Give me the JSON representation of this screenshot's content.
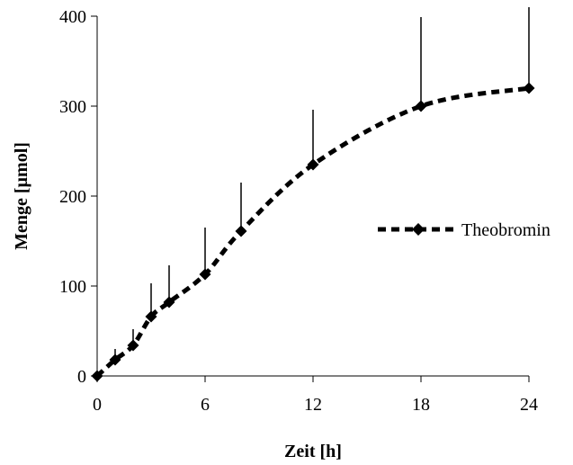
{
  "chart_data": {
    "type": "line",
    "xlabel": "Zeit [h]",
    "ylabel": "Menge [µmol]",
    "xlim": [
      0,
      24
    ],
    "ylim": [
      0,
      400
    ],
    "x_ticks": [
      "0",
      "6",
      "12",
      "18",
      "24"
    ],
    "y_ticks": [
      "0",
      "100",
      "200",
      "300",
      "400"
    ],
    "grid": false,
    "legend_position": "right",
    "series": [
      {
        "name": "Theobromin",
        "color": "#000000",
        "line_style": "dotted",
        "marker": "diamond",
        "x": [
          0,
          1,
          2,
          3,
          4,
          6,
          8,
          12,
          18,
          24
        ],
        "y": [
          0,
          18,
          34,
          66,
          82,
          113,
          161,
          235,
          300,
          320
        ],
        "error_upper": [
          0,
          12,
          18,
          37,
          41,
          52,
          54,
          61,
          99,
          90
        ]
      }
    ]
  }
}
